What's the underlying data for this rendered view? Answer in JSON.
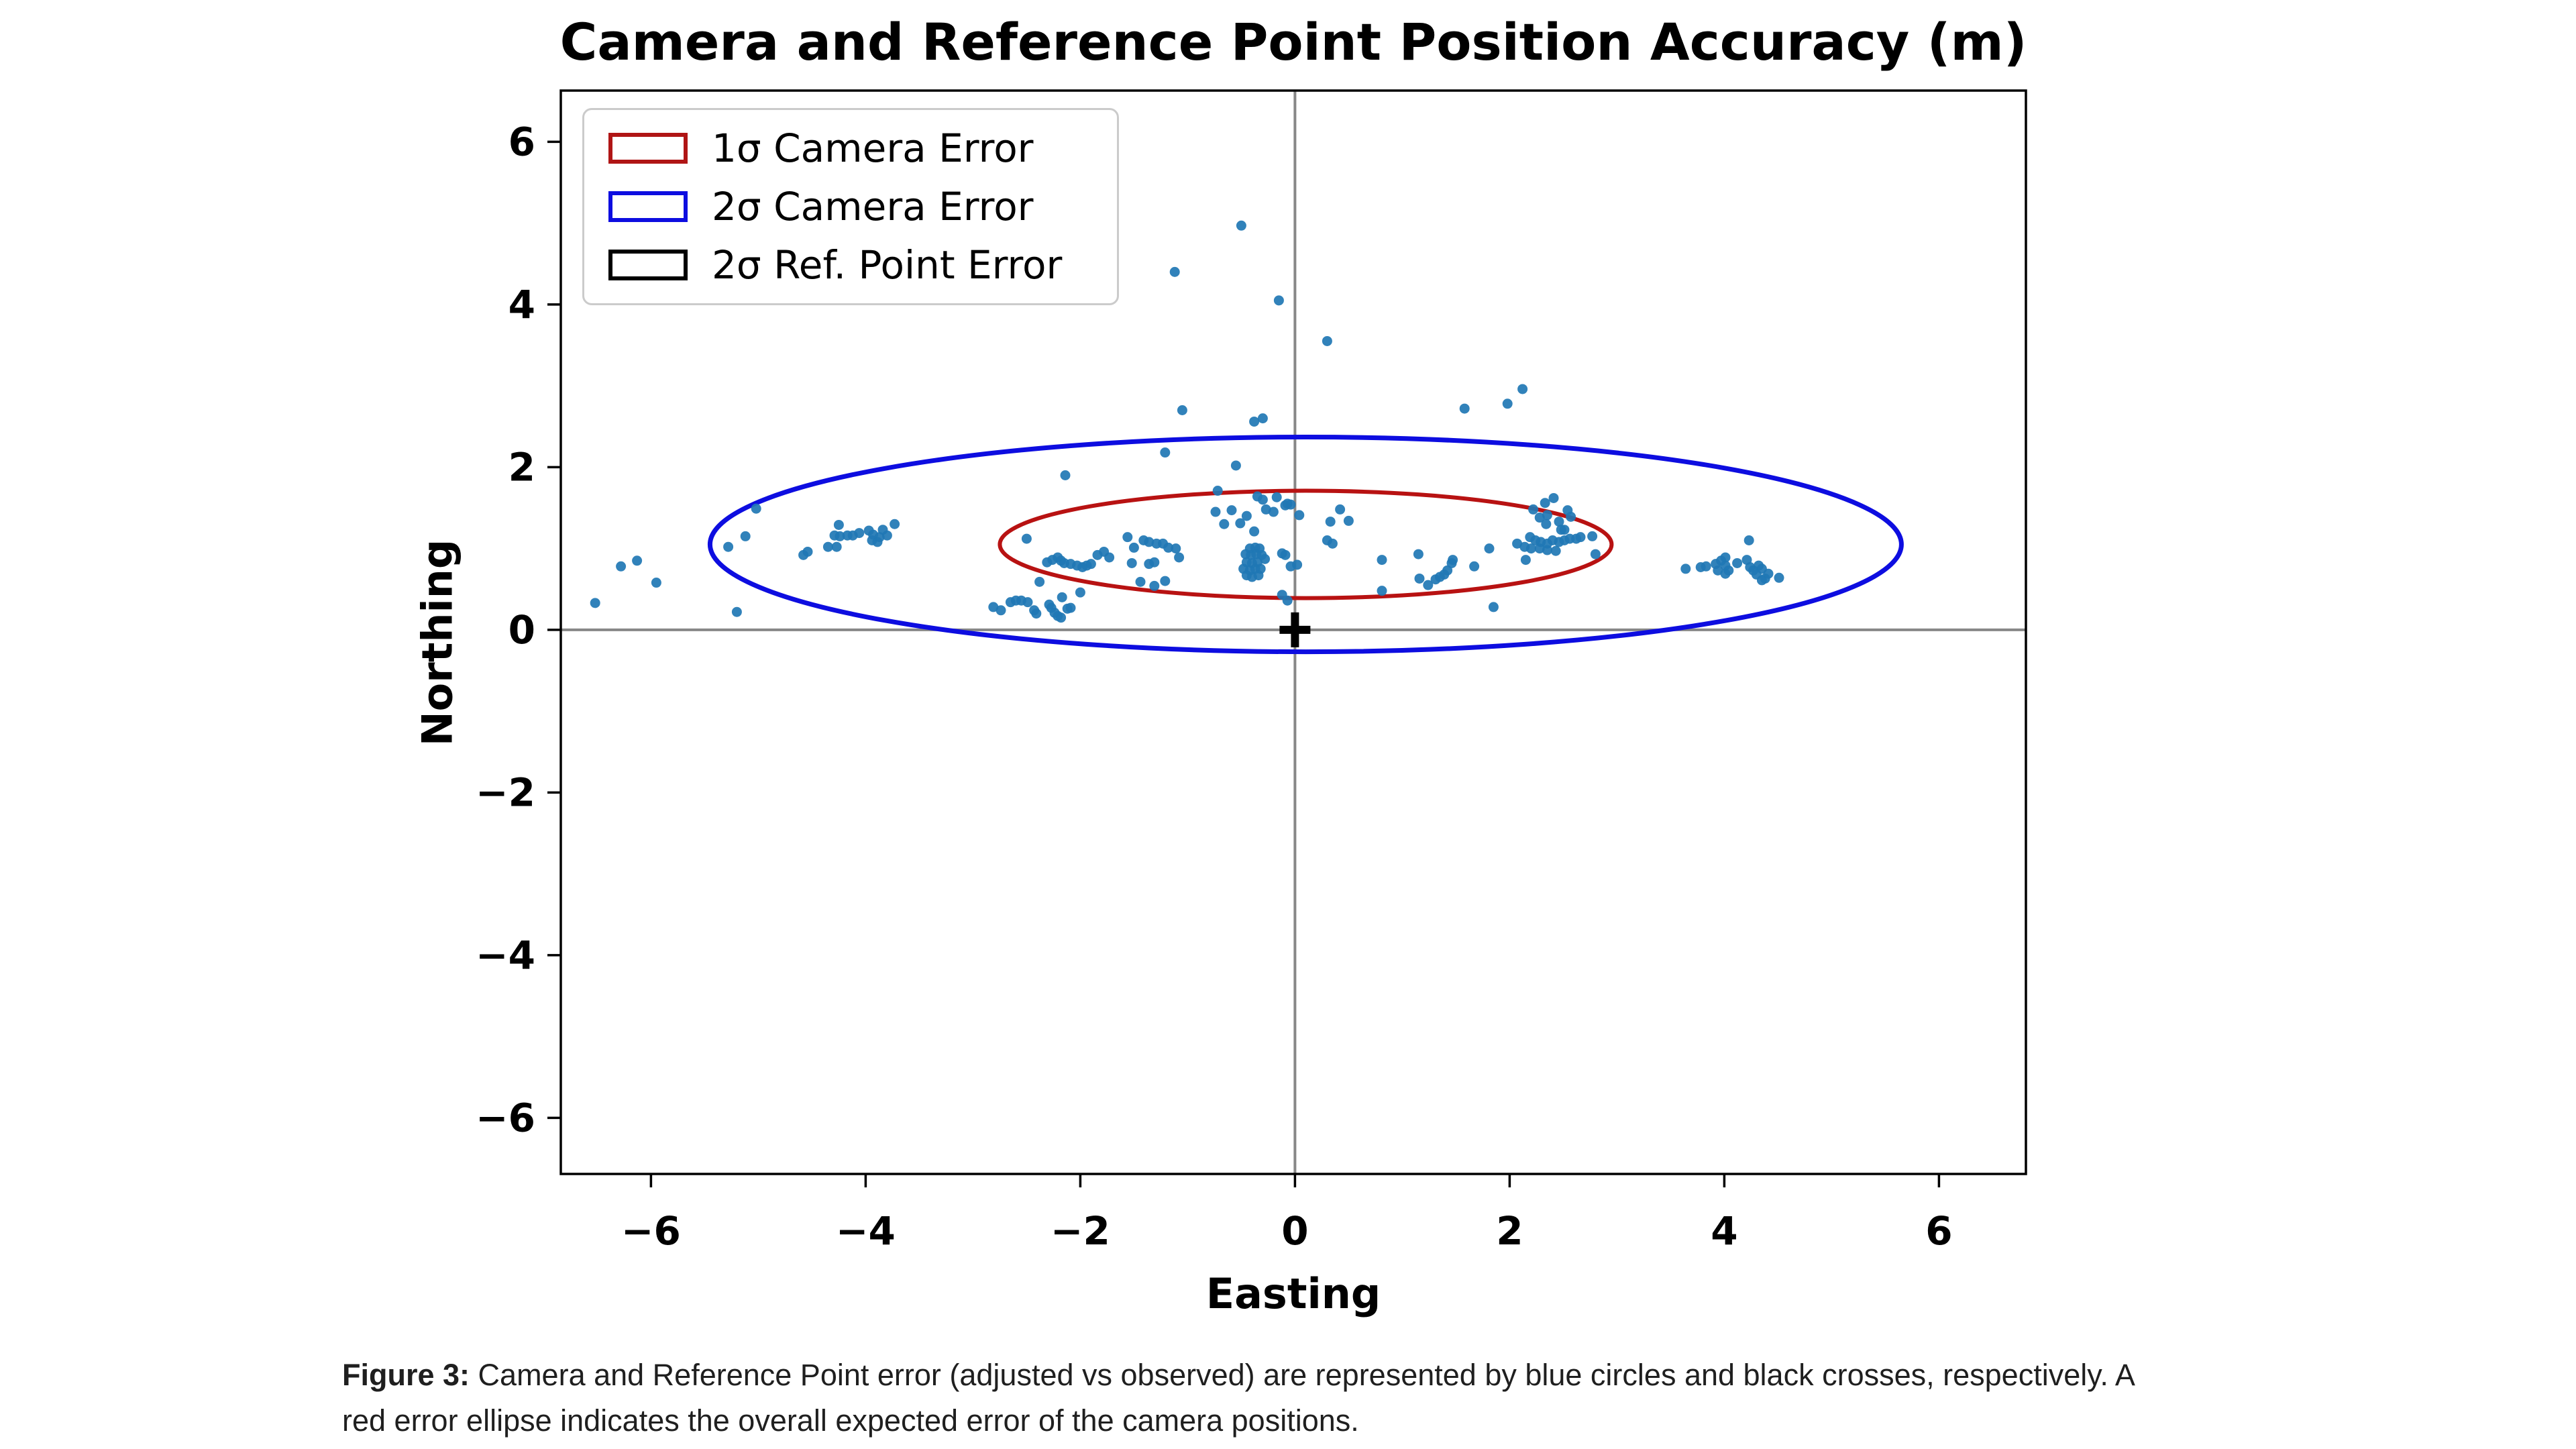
{
  "figure": {
    "title": "Camera and Reference Point Position Accuracy (m)"
  },
  "axes": {
    "xlabel": "Easting",
    "ylabel": "Northing",
    "x_ticks": [
      -6,
      -4,
      -2,
      0,
      2,
      4,
      6
    ],
    "y_ticks": [
      6,
      4,
      2,
      0,
      -2,
      -4,
      -6
    ]
  },
  "legend": {
    "items": [
      {
        "label": "1σ Camera Error",
        "color": "#b01515"
      },
      {
        "label": "2σ Camera Error",
        "color": "#0d0de0"
      },
      {
        "label": "2σ Ref. Point Error",
        "color": "#000000"
      }
    ]
  },
  "caption": {
    "label": "Figure 3:",
    "line1": "Camera and Reference Point error (adjusted vs observed) are represented by blue circles and black crosses, respectively. A",
    "line2": "red error ellipse indicates the overall expected error of the camera positions."
  },
  "chart_data": {
    "type": "scatter",
    "title": "Camera and Reference Point Position Accuracy (m)",
    "xlabel": "Easting",
    "ylabel": "Northing",
    "xlim": [
      -6.84,
      6.81
    ],
    "ylim": [
      -6.69,
      6.63
    ],
    "grid": false,
    "legend_position": "upper left",
    "point_color": "#1f77b4",
    "crosshair_color": "#878787",
    "spine_color": "#000000",
    "ellipses": [
      {
        "name": "2-sigma camera error",
        "cx": 0.1,
        "cy": 1.05,
        "rx": 5.55,
        "ry": 1.32,
        "color": "#0d0de0",
        "stroke_width": 7
      },
      {
        "name": "1-sigma camera error",
        "cx": 0.1,
        "cy": 1.05,
        "rx": 2.85,
        "ry": 0.66,
        "color": "#b81212",
        "stroke_width": 6
      }
    ],
    "ref_point_cross": {
      "x": 0,
      "y": 0,
      "color": "#000000"
    },
    "points": [
      [
        -6.52,
        0.33
      ],
      [
        -6.28,
        0.78
      ],
      [
        -6.13,
        0.85
      ],
      [
        -5.95,
        0.58
      ],
      [
        -5.28,
        1.02
      ],
      [
        -5.2,
        0.22
      ],
      [
        -5.12,
        1.15
      ],
      [
        -5.02,
        1.49
      ],
      [
        -4.58,
        0.92
      ],
      [
        -4.54,
        0.96
      ],
      [
        -4.35,
        1.02
      ],
      [
        -4.29,
        1.16
      ],
      [
        -4.27,
        1.02
      ],
      [
        -4.25,
        1.29
      ],
      [
        -4.24,
        1.15
      ],
      [
        -4.17,
        1.16
      ],
      [
        -4.12,
        1.16
      ],
      [
        -4.06,
        1.19
      ],
      [
        -3.97,
        1.22
      ],
      [
        -3.94,
        1.1
      ],
      [
        -3.93,
        1.17
      ],
      [
        -3.89,
        1.08
      ],
      [
        -3.87,
        1.14
      ],
      [
        -3.84,
        1.23
      ],
      [
        -3.8,
        1.16
      ],
      [
        -3.73,
        1.3
      ],
      [
        -2.5,
        1.12
      ],
      [
        -2.31,
        0.83
      ],
      [
        -2.26,
        0.86
      ],
      [
        -2.21,
        0.89
      ],
      [
        -2.18,
        0.85
      ],
      [
        -2.15,
        0.82
      ],
      [
        -2.09,
        0.81
      ],
      [
        -2.03,
        0.79
      ],
      [
        -1.98,
        0.77
      ],
      [
        -1.94,
        0.79
      ],
      [
        -1.9,
        0.81
      ],
      [
        -1.84,
        0.92
      ],
      [
        -1.78,
        0.96
      ],
      [
        -1.73,
        0.89
      ],
      [
        -2.81,
        0.28
      ],
      [
        -2.74,
        0.24
      ],
      [
        -2.65,
        0.34
      ],
      [
        -2.6,
        0.36
      ],
      [
        -2.55,
        0.36
      ],
      [
        -2.49,
        0.34
      ],
      [
        -2.43,
        0.24
      ],
      [
        -2.41,
        0.2
      ],
      [
        -2.29,
        0.31
      ],
      [
        -2.27,
        0.27
      ],
      [
        -2.24,
        0.21
      ],
      [
        -2.21,
        0.17
      ],
      [
        -2.18,
        0.15
      ],
      [
        -2.12,
        0.26
      ],
      [
        -2.09,
        0.27
      ],
      [
        -2.38,
        0.59
      ],
      [
        -2.17,
        0.4
      ],
      [
        -2.0,
        0.46
      ],
      [
        -1.56,
        1.14
      ],
      [
        -1.52,
        0.82
      ],
      [
        -1.5,
        1.01
      ],
      [
        -1.44,
        0.59
      ],
      [
        -1.41,
        1.1
      ],
      [
        -1.36,
        1.08
      ],
      [
        -1.36,
        0.81
      ],
      [
        -1.31,
        0.83
      ],
      [
        -1.31,
        0.54
      ],
      [
        -1.29,
        1.06
      ],
      [
        -1.23,
        1.06
      ],
      [
        -1.21,
        0.6
      ],
      [
        -1.18,
        1.01
      ],
      [
        -1.11,
        1.0
      ],
      [
        -1.08,
        0.89
      ],
      [
        -0.74,
        1.45
      ],
      [
        -0.66,
        1.3
      ],
      [
        -0.59,
        1.47
      ],
      [
        -0.51,
        1.31
      ],
      [
        -0.45,
        1.4
      ],
      [
        -0.38,
        1.21
      ],
      [
        -0.35,
        1.64
      ],
      [
        -0.3,
        1.6
      ],
      [
        -0.27,
        1.48
      ],
      [
        -0.2,
        1.45
      ],
      [
        -0.17,
        1.63
      ],
      [
        -0.09,
        1.53
      ],
      [
        -0.07,
        1.55
      ],
      [
        -0.04,
        1.54
      ],
      [
        0.04,
        1.41
      ],
      [
        -0.42,
        1.0
      ],
      [
        -0.37,
        1.01
      ],
      [
        -0.33,
        1.0
      ],
      [
        -0.46,
        0.93
      ],
      [
        -0.41,
        0.92
      ],
      [
        -0.36,
        0.93
      ],
      [
        -0.31,
        0.92
      ],
      [
        -0.28,
        0.87
      ],
      [
        -0.45,
        0.83
      ],
      [
        -0.4,
        0.82
      ],
      [
        -0.35,
        0.83
      ],
      [
        -0.48,
        0.75
      ],
      [
        -0.42,
        0.73
      ],
      [
        -0.37,
        0.75
      ],
      [
        -0.32,
        0.75
      ],
      [
        -0.45,
        0.67
      ],
      [
        -0.4,
        0.65
      ],
      [
        -0.34,
        0.67
      ],
      [
        -0.12,
        0.94
      ],
      [
        -0.09,
        0.92
      ],
      [
        -0.04,
        0.78
      ],
      [
        0.02,
        0.8
      ],
      [
        -0.07,
        0.36
      ],
      [
        -0.12,
        0.43
      ],
      [
        -0.5,
        4.97
      ],
      [
        -1.12,
        4.4
      ],
      [
        -0.15,
        4.05
      ],
      [
        0.3,
        3.55
      ],
      [
        -1.05,
        2.7
      ],
      [
        -0.38,
        2.56
      ],
      [
        -0.3,
        2.6
      ],
      [
        1.58,
        2.72
      ],
      [
        1.98,
        2.78
      ],
      [
        2.12,
        2.96
      ],
      [
        -2.14,
        1.9
      ],
      [
        -1.21,
        2.18
      ],
      [
        -0.72,
        1.71
      ],
      [
        -0.55,
        2.02
      ],
      [
        0.3,
        1.1
      ],
      [
        0.33,
        1.33
      ],
      [
        0.35,
        1.06
      ],
      [
        0.42,
        1.48
      ],
      [
        0.5,
        1.34
      ],
      [
        0.81,
        0.86
      ],
      [
        0.81,
        0.48
      ],
      [
        1.15,
        0.93
      ],
      [
        1.16,
        0.63
      ],
      [
        1.24,
        0.55
      ],
      [
        1.31,
        0.62
      ],
      [
        1.35,
        0.65
      ],
      [
        1.39,
        0.68
      ],
      [
        1.42,
        0.73
      ],
      [
        1.46,
        0.82
      ],
      [
        1.47,
        0.86
      ],
      [
        1.67,
        0.78
      ],
      [
        1.81,
        1.0
      ],
      [
        1.85,
        0.28
      ],
      [
        2.15,
        0.86
      ],
      [
        2.07,
        1.06
      ],
      [
        2.14,
        1.02
      ],
      [
        2.19,
        1.14
      ],
      [
        2.2,
        1.0
      ],
      [
        2.22,
        1.48
      ],
      [
        2.24,
        1.1
      ],
      [
        2.28,
        1.38
      ],
      [
        2.28,
        1.0
      ],
      [
        2.29,
        1.08
      ],
      [
        2.33,
        1.56
      ],
      [
        2.34,
        1.3
      ],
      [
        2.35,
        1.41
      ],
      [
        2.35,
        1.06
      ],
      [
        2.35,
        0.98
      ],
      [
        2.4,
        1.1
      ],
      [
        2.41,
        1.62
      ],
      [
        2.43,
        0.97
      ],
      [
        2.46,
        1.33
      ],
      [
        2.46,
        1.08
      ],
      [
        2.48,
        1.23
      ],
      [
        2.51,
        1.23
      ],
      [
        2.51,
        1.1
      ],
      [
        2.54,
        1.47
      ],
      [
        2.56,
        1.12
      ],
      [
        2.57,
        1.39
      ],
      [
        2.62,
        1.12
      ],
      [
        2.66,
        1.14
      ],
      [
        2.77,
        1.15
      ],
      [
        2.8,
        0.93
      ],
      [
        3.64,
        0.75
      ],
      [
        3.78,
        0.77
      ],
      [
        3.83,
        0.78
      ],
      [
        3.92,
        0.81
      ],
      [
        3.94,
        0.73
      ],
      [
        3.97,
        0.85
      ],
      [
        4.01,
        0.89
      ],
      [
        4.01,
        0.79
      ],
      [
        4.01,
        0.69
      ],
      [
        4.04,
        0.73
      ],
      [
        4.12,
        0.82
      ],
      [
        4.21,
        0.86
      ],
      [
        4.23,
        1.1
      ],
      [
        4.24,
        0.77
      ],
      [
        4.27,
        0.73
      ],
      [
        4.3,
        0.68
      ],
      [
        4.32,
        0.79
      ],
      [
        4.35,
        0.75
      ],
      [
        4.35,
        0.61
      ],
      [
        4.38,
        0.63
      ],
      [
        4.41,
        0.69
      ],
      [
        4.51,
        0.64
      ]
    ]
  }
}
